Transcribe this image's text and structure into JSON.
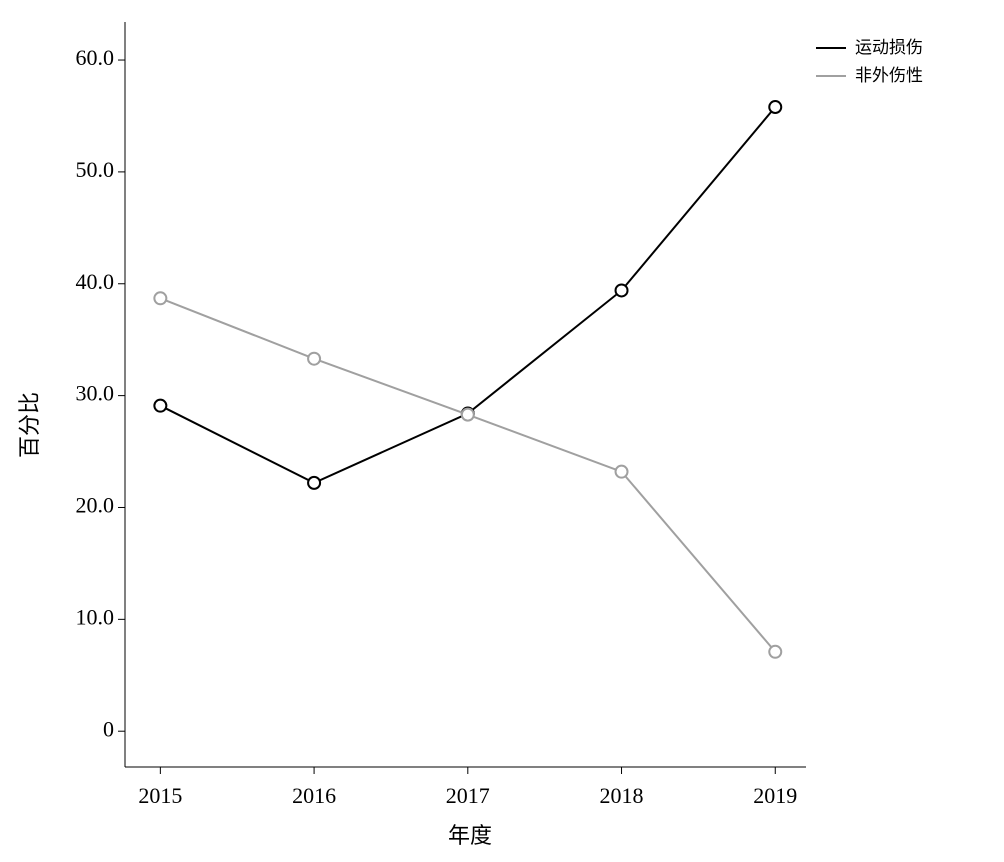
{
  "chart_data": {
    "type": "line",
    "x_label": "年度",
    "y_label": "百分比",
    "x": [
      2015,
      2016,
      2017,
      2018,
      2019
    ],
    "xlim": [
      2014.77,
      2019.2
    ],
    "xticks": [
      2015,
      2016,
      2017,
      2018,
      2019
    ],
    "ylim": [
      -3.2,
      63.4
    ],
    "yticks": [
      0,
      {
        "value": 10,
        "label": "10.0"
      },
      {
        "value": 20,
        "label": "20.0"
      },
      {
        "value": 30,
        "label": "30.0"
      },
      {
        "value": 40,
        "label": "40.0"
      },
      {
        "value": 50,
        "label": "50.0"
      },
      {
        "value": 60,
        "label": "60.0"
      }
    ],
    "legend": "top-right",
    "grid": false,
    "series": [
      {
        "name": "运动损伤",
        "color": "#000000",
        "values": [
          29.1,
          22.2,
          28.4,
          39.4,
          55.8
        ]
      },
      {
        "name": "非外伤性",
        "color": "#a0a0a0",
        "values": [
          38.7,
          33.3,
          28.3,
          23.2,
          7.1
        ]
      }
    ]
  }
}
